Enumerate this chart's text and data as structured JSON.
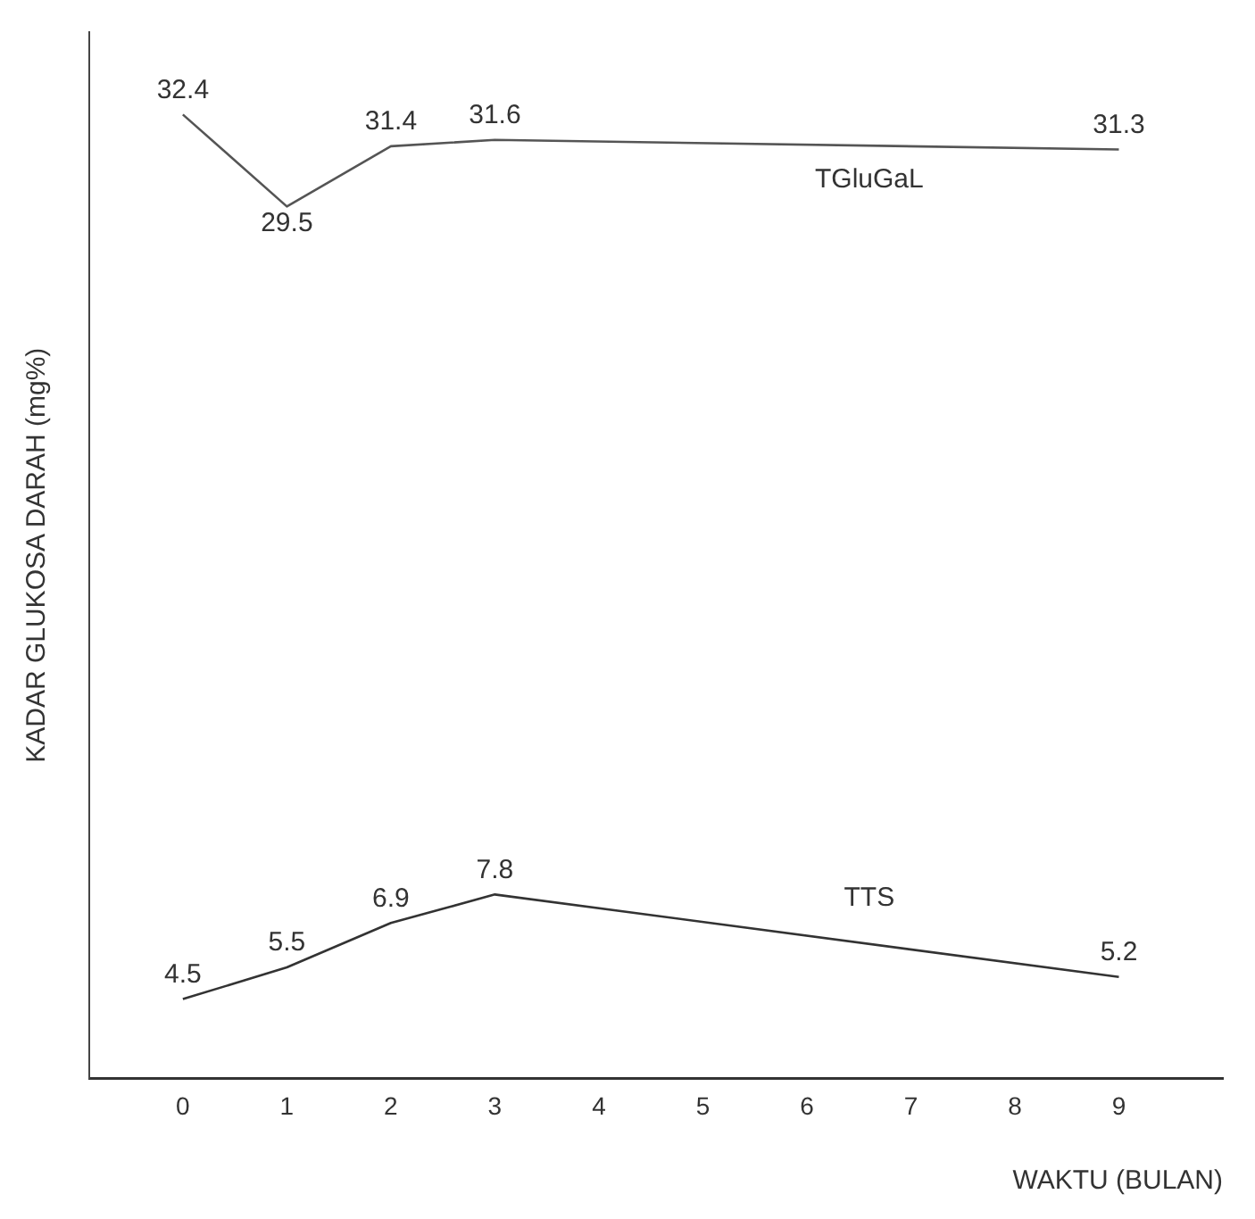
{
  "chart_data": {
    "type": "line",
    "xlabel": "WAKTU (BULAN)",
    "ylabel": "KADAR GLUKOSA DARAH (mg%)",
    "xlim": [
      -0.9,
      10
    ],
    "xticks": [
      0,
      1,
      2,
      3,
      4,
      5,
      6,
      7,
      8,
      9
    ],
    "ylim": [
      2,
      35
    ],
    "tick_labels": "x",
    "grid": false,
    "legend": false,
    "marker": "none",
    "line_style": "solid",
    "data_labels": true,
    "x": [
      0,
      1,
      2,
      3,
      9
    ],
    "series": [
      {
        "name": "TGluGaL",
        "color": "#555555",
        "values": [
          32.4,
          29.5,
          31.4,
          31.6,
          31.3
        ]
      },
      {
        "name": "TTS",
        "color": "#333333",
        "values": [
          4.5,
          5.5,
          6.9,
          7.8,
          5.2
        ]
      }
    ]
  }
}
